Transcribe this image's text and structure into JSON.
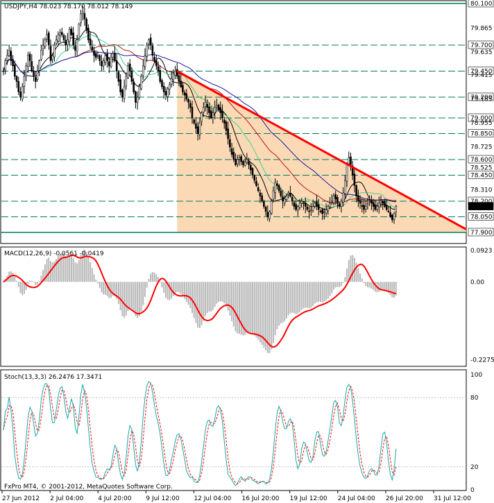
{
  "window": {
    "title": "USDJPY,H4  78.023 78.170 78.012 78.149",
    "copyright": "FxPro MT4, © 2001-2012, MetaQuotes Software Corp."
  },
  "colors": {
    "background": "#ffffff",
    "bull_bear": "#000000",
    "trendline": "#ff0000",
    "shade": "#fcd9b5",
    "ma_fast": "#000000",
    "ma_green": "#3fd08a",
    "ma_red": "#b11616",
    "ma_blue": "#1a1a9c",
    "level_line": "#007a5e",
    "macd_hist": "#b8b8b8",
    "macd_signal": "#ff0000",
    "stoch_main": "#1aa6a6",
    "stoch_signal": "#ff0000"
  },
  "chart_data": [
    {
      "type": "candlestick",
      "title": "USDJPY,H4",
      "ohlc_readout": [
        "78.023",
        "78.170",
        "78.012",
        "78.149"
      ],
      "ylim": [
        77.8,
        80.12
      ],
      "y_ticks": [
        "80.100",
        "79.865",
        "79.700",
        "79.635",
        "79.450",
        "79.415",
        "79.200",
        "79.185",
        "79.000",
        "78.955",
        "78.850",
        "78.725",
        "78.600",
        "78.525",
        "78.450",
        "78.310",
        "78.200",
        "78.149",
        "78.050",
        "77.900"
      ],
      "x_ticks": [
        "27 Jun 2012",
        "2 Jul 04:00",
        "4 Jul 20:00",
        "9 Jul 12:00",
        "12 Jul 04:00",
        "16 Jul 20:00",
        "19 Jul 12:00",
        "24 Jul 04:00",
        "26 Jul 20:00",
        "31 Jul 12:00"
      ],
      "levels": [
        80.1,
        79.7,
        79.45,
        79.2,
        79.0,
        78.85,
        78.6,
        78.45,
        78.2,
        78.05,
        77.9
      ],
      "current_price": 78.149,
      "trendline": [
        {
          "bar": 92,
          "price": 79.45
        },
        {
          "bar": 220,
          "price": 78.18
        }
      ],
      "closes": [
        79.45,
        79.55,
        79.6,
        79.65,
        79.55,
        79.5,
        79.4,
        79.35,
        79.25,
        79.2,
        79.3,
        79.4,
        79.5,
        79.6,
        79.55,
        79.45,
        79.4,
        79.35,
        79.45,
        79.55,
        79.65,
        79.7,
        79.75,
        79.8,
        79.7,
        79.55,
        79.6,
        79.7,
        79.75,
        79.8,
        79.82,
        79.8,
        79.75,
        79.7,
        79.75,
        79.85,
        79.8,
        79.7,
        79.65,
        79.75,
        79.9,
        80.0,
        80.02,
        79.95,
        79.85,
        79.75,
        79.7,
        79.65,
        79.6,
        79.58,
        79.6,
        79.55,
        79.5,
        79.55,
        79.6,
        79.55,
        79.5,
        79.58,
        79.62,
        79.55,
        79.45,
        79.35,
        79.25,
        79.2,
        79.3,
        79.4,
        79.5,
        79.45,
        79.35,
        79.25,
        79.15,
        79.2,
        79.3,
        79.4,
        79.5,
        79.6,
        79.7,
        79.75,
        79.7,
        79.6,
        79.55,
        79.5,
        79.45,
        79.35,
        79.3,
        79.25,
        79.22,
        79.28,
        79.32,
        79.38,
        79.42,
        79.45,
        79.4,
        79.35,
        79.3,
        79.25,
        79.22,
        79.18,
        79.15,
        79.1,
        79.0,
        78.95,
        78.9,
        78.85,
        78.95,
        79.05,
        79.1,
        79.15,
        79.1,
        79.05,
        79.0,
        79.05,
        79.1,
        79.12,
        79.08,
        79.05,
        79.0,
        78.95,
        78.88,
        78.8,
        78.72,
        78.65,
        78.6,
        78.55,
        78.6,
        78.62,
        78.58,
        78.55,
        78.58,
        78.6,
        78.55,
        78.5,
        78.45,
        78.4,
        78.35,
        78.3,
        78.25,
        78.2,
        78.15,
        78.1,
        78.05,
        78.1,
        78.2,
        78.3,
        78.38,
        78.35,
        78.3,
        78.25,
        78.2,
        78.22,
        78.25,
        78.28,
        78.25,
        78.2,
        78.15,
        78.12,
        78.15,
        78.18,
        78.2,
        78.18,
        78.15,
        78.12,
        78.1,
        78.12,
        78.15,
        78.18,
        78.15,
        78.12,
        78.1,
        78.08,
        78.1,
        78.12,
        78.15,
        78.18,
        78.2,
        78.25,
        78.22,
        78.18,
        78.15,
        78.2,
        78.28,
        78.4,
        78.55,
        78.62,
        78.55,
        78.45,
        78.35,
        78.25,
        78.2,
        78.18,
        78.15,
        78.12,
        78.15,
        78.18,
        78.2,
        78.18,
        78.15,
        78.12,
        78.15,
        78.18,
        78.2,
        78.18,
        78.15,
        78.12,
        78.1,
        78.05,
        78.02,
        78.08,
        78.15
      ]
    },
    {
      "type": "line",
      "title": "MACD(12,26,9) -0.0561 -0.0419",
      "ylim": [
        -0.245,
        0.1
      ],
      "y_ticks": [
        "0.0923",
        "0.00",
        "-0.2275"
      ]
    },
    {
      "type": "line",
      "title": "Stoch(13,3,3) 26.2476 17.3471",
      "ylim": [
        0,
        100
      ],
      "y_ticks": [
        "100",
        "80",
        "20",
        "0"
      ]
    }
  ]
}
